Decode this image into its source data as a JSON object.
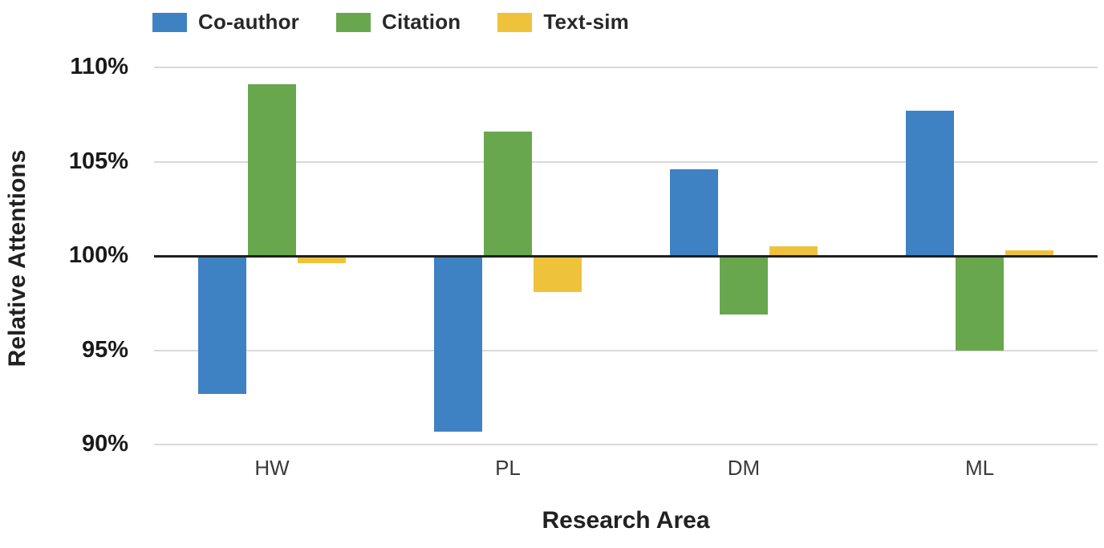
{
  "chart_data": {
    "type": "bar",
    "title": "",
    "categories": [
      "HW",
      "PL",
      "DM",
      "ML"
    ],
    "series": [
      {
        "name": "Co-author",
        "color": "#3e82c4",
        "values": [
          92.7,
          90.7,
          104.6,
          107.7
        ]
      },
      {
        "name": "Citation",
        "color": "#68a74e",
        "values": [
          109.1,
          106.6,
          96.9,
          95.0
        ]
      },
      {
        "name": "Text-sim",
        "color": "#eec33b",
        "values": [
          99.6,
          98.1,
          100.5,
          100.3
        ]
      }
    ],
    "xlabel": "Research Area",
    "ylabel": "Relative Attentions",
    "ylim": [
      90,
      110
    ],
    "yticks": [
      110,
      105,
      100,
      95,
      90
    ],
    "ytick_labels": [
      "110%",
      "105%",
      "100%",
      "95%",
      "90%"
    ],
    "baseline": 100,
    "grid": "horizontal",
    "legend_position": "top-left",
    "colors": {
      "gridline": "#d9d9d9",
      "baseline_axis": "#1f1f1f",
      "tick_text": "#1a1a1a",
      "category_text": "#3a3a3a",
      "title_text": "#212121",
      "background": "#ffffff"
    }
  }
}
